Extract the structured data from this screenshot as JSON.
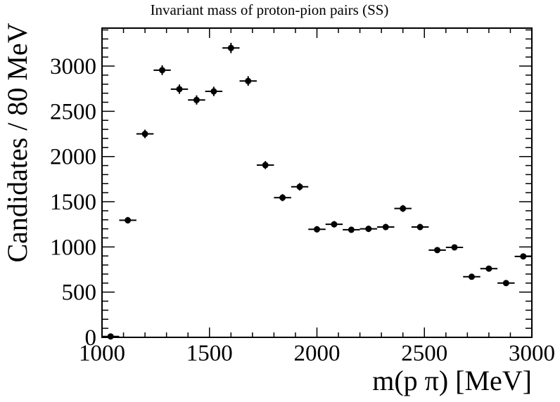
{
  "chart_data": {
    "type": "scatter",
    "title": "Invariant mass of proton-pion pairs (SS)",
    "xlabel": "m(p π) [MeV]",
    "ylabel": "Candidates / 80 MeV",
    "xlim": [
      1000,
      3000
    ],
    "ylim": [
      0,
      3420
    ],
    "x_ticks": [
      1000,
      1500,
      2000,
      2500,
      3000
    ],
    "y_ticks": [
      0,
      500,
      1000,
      1500,
      2000,
      2500,
      3000
    ],
    "bin_width": 80,
    "grid": false,
    "legend": "none",
    "marker_color": "#000000",
    "series": [
      {
        "x": [
          1040,
          1120,
          1200,
          1280,
          1360,
          1440,
          1520,
          1600,
          1680,
          1760,
          1840,
          1920,
          2000,
          2080,
          2160,
          2240,
          2320,
          2400,
          2480,
          2560,
          2640,
          2720,
          2800,
          2880,
          2960
        ],
        "values": [
          10,
          1295,
          2250,
          2955,
          2745,
          2625,
          2720,
          3200,
          2835,
          1905,
          1545,
          1665,
          1195,
          1250,
          1190,
          1200,
          1220,
          1425,
          1220,
          965,
          995,
          670,
          760,
          600,
          895
        ],
        "errors": [
          3,
          36,
          47,
          54,
          52,
          51,
          52,
          57,
          53,
          44,
          39,
          41,
          35,
          35,
          34,
          35,
          35,
          38,
          35,
          31,
          32,
          26,
          28,
          24,
          30
        ]
      }
    ]
  }
}
